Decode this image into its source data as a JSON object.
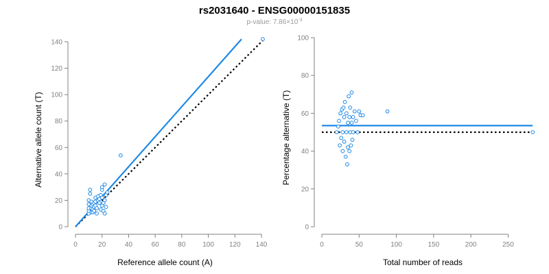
{
  "title": "rs2031640 - ENSG00000151835",
  "subtitle": {
    "prefix": "p-value: 7.86×10",
    "exponent": "-3"
  },
  "colors": {
    "points": "#1e88e5",
    "fit_line": "#1e88e5",
    "reference_line": "#000000",
    "axis": "#808080"
  },
  "chart_data": [
    {
      "type": "scatter",
      "xlabel": "Reference allele count (A)",
      "ylabel": "Alternative allele count (T)",
      "xlim": [
        0,
        140
      ],
      "ylim": [
        0,
        140
      ],
      "xticks": [
        0,
        20,
        40,
        60,
        80,
        100,
        120,
        140
      ],
      "yticks": [
        0,
        20,
        40,
        60,
        80,
        100,
        120,
        140
      ],
      "points": [
        [
          10,
          10
        ],
        [
          10,
          12
        ],
        [
          10,
          14
        ],
        [
          10,
          17
        ],
        [
          10,
          20
        ],
        [
          11,
          25
        ],
        [
          11,
          28
        ],
        [
          12,
          11
        ],
        [
          12,
          14
        ],
        [
          12,
          16
        ],
        [
          12,
          19
        ],
        [
          13,
          11
        ],
        [
          13,
          13
        ],
        [
          13,
          17
        ],
        [
          14,
          12
        ],
        [
          14,
          15
        ],
        [
          14,
          18
        ],
        [
          15,
          16
        ],
        [
          15,
          19
        ],
        [
          15,
          22
        ],
        [
          16,
          10
        ],
        [
          16,
          14
        ],
        [
          17,
          20
        ],
        [
          17,
          23
        ],
        [
          18,
          18
        ],
        [
          18,
          21
        ],
        [
          19,
          24
        ],
        [
          19,
          13
        ],
        [
          20,
          22
        ],
        [
          20,
          16
        ],
        [
          20,
          28
        ],
        [
          21,
          12
        ],
        [
          21,
          18
        ],
        [
          22,
          20
        ],
        [
          22,
          32
        ],
        [
          23,
          15
        ],
        [
          23,
          24
        ],
        [
          24,
          26
        ],
        [
          20,
          30
        ],
        [
          22,
          10
        ],
        [
          34,
          54
        ],
        [
          141,
          142
        ]
      ],
      "fit_line": [
        [
          0,
          0
        ],
        [
          125,
          142
        ]
      ],
      "reference_line": [
        [
          0,
          0
        ],
        [
          141,
          141
        ]
      ]
    },
    {
      "type": "scatter",
      "xlabel": "Total number of reads",
      "ylabel": "Percentage alternative (T)",
      "xlim": [
        0,
        280
      ],
      "ylim": [
        0,
        100
      ],
      "xticks": [
        0,
        50,
        100,
        150,
        200,
        250
      ],
      "yticks": [
        0,
        20,
        40,
        60,
        80,
        100
      ],
      "points": [
        [
          20,
          50
        ],
        [
          22,
          53
        ],
        [
          23,
          56
        ],
        [
          24,
          43
        ],
        [
          25,
          60
        ],
        [
          26,
          47
        ],
        [
          27,
          62
        ],
        [
          28,
          50
        ],
        [
          28,
          40
        ],
        [
          29,
          63
        ],
        [
          30,
          58
        ],
        [
          30,
          45
        ],
        [
          31,
          66
        ],
        [
          32,
          37
        ],
        [
          33,
          50
        ],
        [
          33,
          60
        ],
        [
          34,
          33
        ],
        [
          35,
          42
        ],
        [
          35,
          55
        ],
        [
          36,
          69
        ],
        [
          37,
          40
        ],
        [
          37,
          58
        ],
        [
          38,
          50
        ],
        [
          38,
          63
        ],
        [
          39,
          43
        ],
        [
          40,
          71
        ],
        [
          40,
          55
        ],
        [
          41,
          46
        ],
        [
          42,
          58
        ],
        [
          42,
          50
        ],
        [
          44,
          61
        ],
        [
          46,
          56
        ],
        [
          48,
          50
        ],
        [
          50,
          61
        ],
        [
          52,
          59
        ],
        [
          55,
          59
        ],
        [
          88,
          61
        ],
        [
          283,
          50
        ]
      ],
      "fit_line": [
        [
          0,
          53.5
        ],
        [
          283,
          53.5
        ]
      ],
      "reference_line": [
        [
          0,
          50
        ],
        [
          283,
          50
        ]
      ]
    }
  ]
}
